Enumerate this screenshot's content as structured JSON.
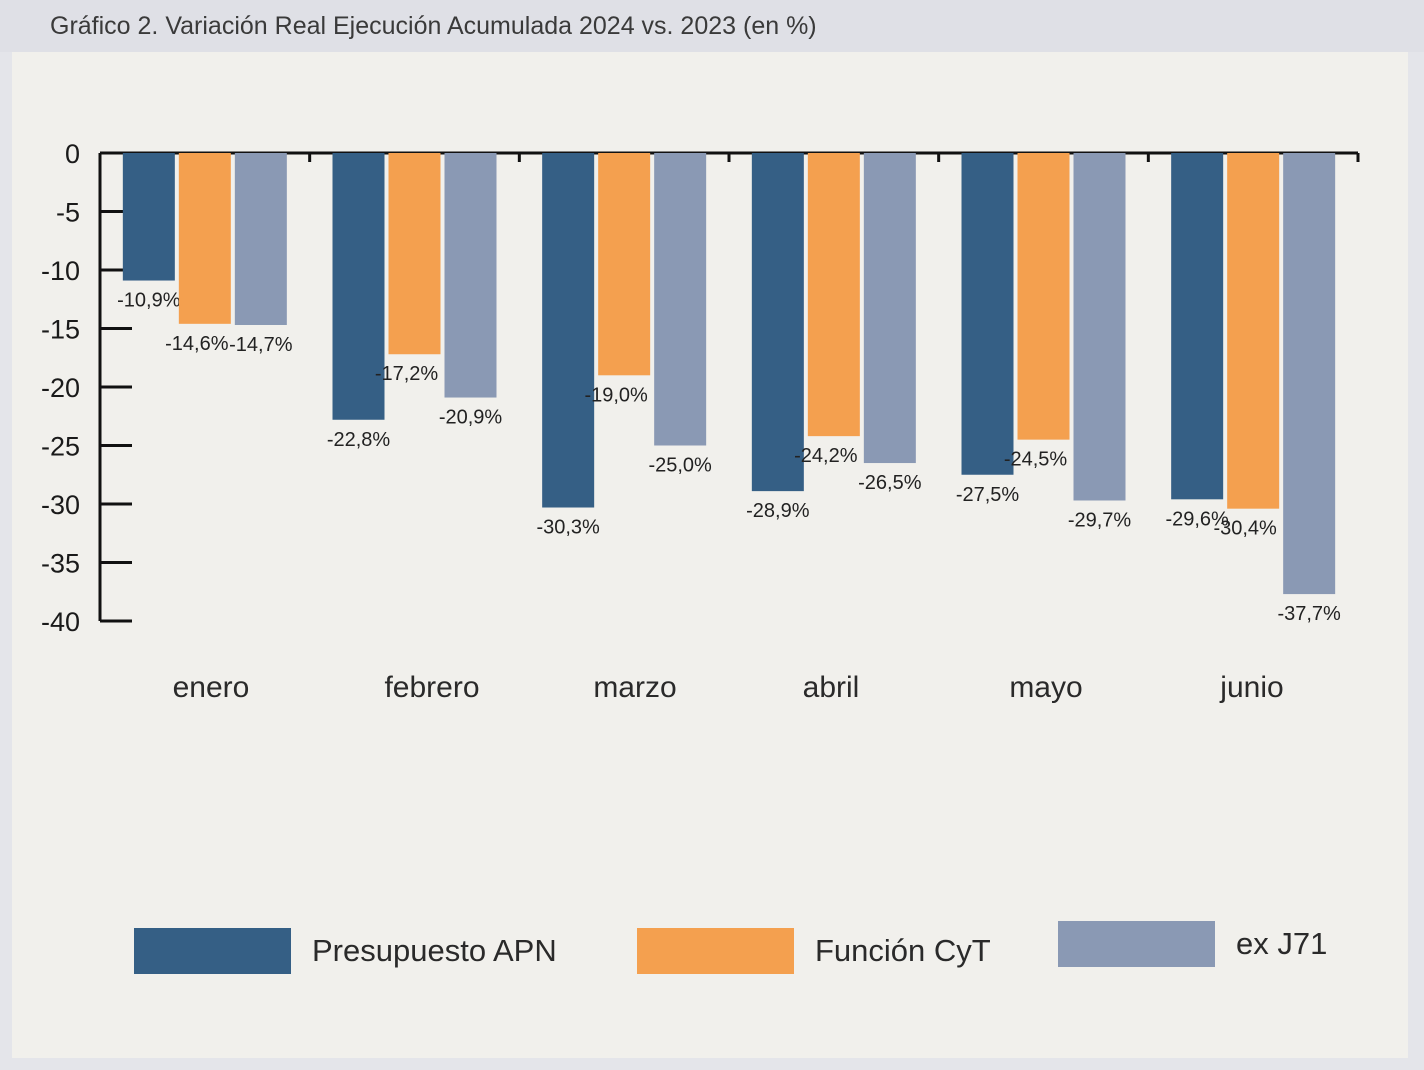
{
  "title": "Gráfico 2. Variación Real Ejecución Acumulada 2024 vs. 2023 (en %)",
  "colors": {
    "presupuesto_apn": "#355f85",
    "funcion_cyt": "#f4a04f",
    "ex_j71": "#8a99b4"
  },
  "chart_data": {
    "type": "bar",
    "title": "Gráfico 2. Variación Real Ejecución Acumulada 2024 vs. 2023 (en %)",
    "xlabel": "",
    "ylabel": "",
    "ylim": [
      -40,
      0
    ],
    "yticks": [
      "0",
      "-5",
      "-10",
      "-15",
      "-20",
      "-25",
      "-30",
      "-35",
      "-40"
    ],
    "grid": false,
    "legend_position": "bottom",
    "categories": [
      "enero",
      "febrero",
      "marzo",
      "abril",
      "mayo",
      "junio"
    ],
    "series": [
      {
        "name": "Presupuesto APN",
        "color": "#355f85",
        "values": [
          -10.9,
          -22.8,
          -30.3,
          -28.9,
          -27.5,
          -29.6
        ],
        "labels": [
          "-10,9%",
          "-22,8%",
          "-30,3%",
          "-28,9%",
          "-27,5%",
          "-29,6%"
        ]
      },
      {
        "name": "Función CyT",
        "color": "#f4a04f",
        "values": [
          -14.6,
          -17.2,
          -19.0,
          -24.2,
          -24.5,
          -30.4
        ],
        "labels": [
          "-14,6%",
          "-17,2%",
          "-19,0%",
          "-24,2%",
          "-24,5%",
          "-30,4%"
        ]
      },
      {
        "name": "ex J71",
        "color": "#8a99b4",
        "values": [
          -14.7,
          -20.9,
          -25.0,
          -26.5,
          -29.7,
          -37.7
        ],
        "labels": [
          "-14,7%",
          "-20,9%",
          "-25,0%",
          "-26,5%",
          "-29,7%",
          "-37,7%"
        ]
      }
    ]
  }
}
